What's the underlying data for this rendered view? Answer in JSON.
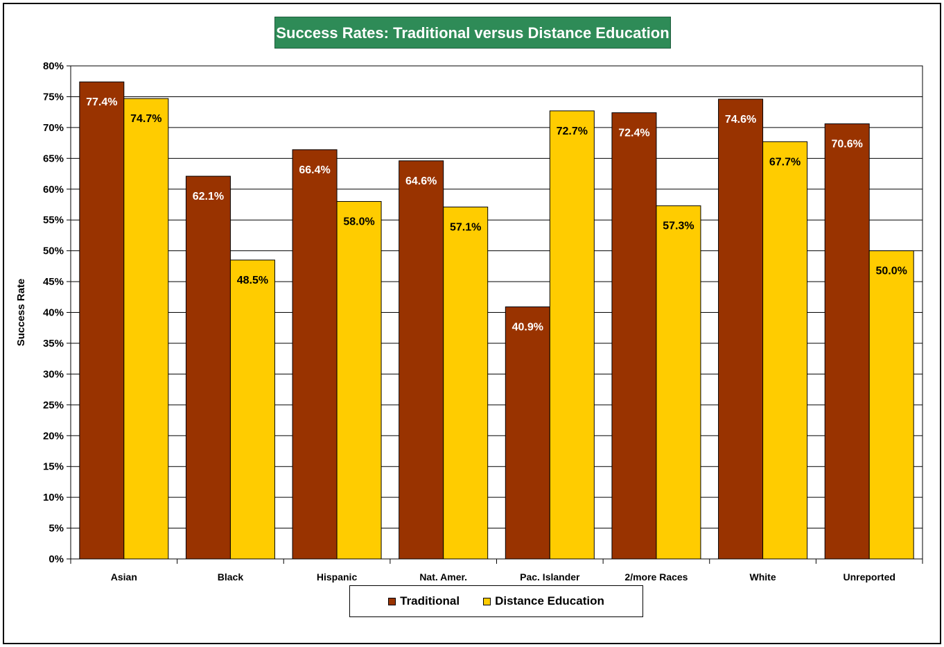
{
  "chart_data": {
    "type": "bar",
    "title": "Success Rates: Traditional versus Distance Education",
    "ylabel": "Success Rate",
    "xlabel": "",
    "ylim": [
      0,
      80
    ],
    "y_ticks": [
      "0%",
      "5%",
      "10%",
      "15%",
      "20%",
      "25%",
      "30%",
      "35%",
      "40%",
      "45%",
      "50%",
      "55%",
      "60%",
      "65%",
      "70%",
      "75%",
      "80%"
    ],
    "categories": [
      "Asian",
      "Black",
      "Hispanic",
      "Nat. Amer.",
      "Pac. Islander",
      "2/more Races",
      "White",
      "Unreported"
    ],
    "series": [
      {
        "name": "Traditional",
        "color": "#993300",
        "label_color": "#ffffff",
        "values": [
          77.4,
          62.1,
          66.4,
          64.6,
          40.9,
          72.4,
          74.6,
          70.6
        ],
        "labels": [
          "77.4%",
          "62.1%",
          "66.4%",
          "64.6%",
          "40.9%",
          "72.4%",
          "74.6%",
          "70.6%"
        ]
      },
      {
        "name": "Distance Education",
        "color": "#ffcc00",
        "label_color": "#000000",
        "values": [
          74.7,
          48.5,
          58.0,
          57.1,
          72.7,
          57.3,
          67.7,
          50.0
        ],
        "labels": [
          "74.7%",
          "48.5%",
          "58.0%",
          "57.1%",
          "72.7%",
          "57.3%",
          "67.7%",
          "50.0%"
        ]
      }
    ],
    "grid": true,
    "legend_position": "bottom-center",
    "title_background": "#2e8b57"
  }
}
